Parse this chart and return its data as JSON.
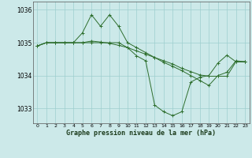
{
  "xlabel": "Graphe pression niveau de la mer (hPa)",
  "background_color": "#cce9e9",
  "grid_color": "#9ecece",
  "line_color": "#2d6e2d",
  "ylim": [
    1032.55,
    1036.25
  ],
  "xlim": [
    -0.5,
    23.5
  ],
  "yticks": [
    1033,
    1034,
    1035,
    1036
  ],
  "xticks": [
    0,
    1,
    2,
    3,
    4,
    5,
    6,
    7,
    8,
    9,
    10,
    11,
    12,
    13,
    14,
    15,
    16,
    17,
    18,
    19,
    20,
    21,
    22,
    23
  ],
  "series1": [
    1034.9,
    1035.0,
    1035.0,
    1035.0,
    1035.0,
    1035.3,
    1035.85,
    1035.5,
    1035.85,
    1035.5,
    1035.0,
    1034.85,
    1034.7,
    1034.55,
    1034.4,
    1034.28,
    1034.15,
    1034.0,
    1033.85,
    1033.7,
    1034.0,
    1034.1,
    1034.45,
    1034.42
  ],
  "series2": [
    1034.9,
    1035.0,
    1035.0,
    1035.0,
    1035.0,
    1035.0,
    1035.0,
    1035.0,
    1035.0,
    1035.0,
    1034.85,
    1034.6,
    1034.45,
    1033.1,
    1032.9,
    1032.78,
    1032.9,
    1033.8,
    1033.95,
    1034.0,
    1034.38,
    1034.62,
    1034.42,
    1034.42
  ],
  "series3": [
    1034.9,
    1035.0,
    1035.0,
    1035.0,
    1035.0,
    1035.0,
    1035.05,
    1035.02,
    1034.98,
    1034.92,
    1034.85,
    1034.75,
    1034.65,
    1034.55,
    1034.45,
    1034.35,
    1034.22,
    1034.12,
    1034.02,
    1033.98,
    1033.98,
    1033.98,
    1034.42,
    1034.42
  ]
}
